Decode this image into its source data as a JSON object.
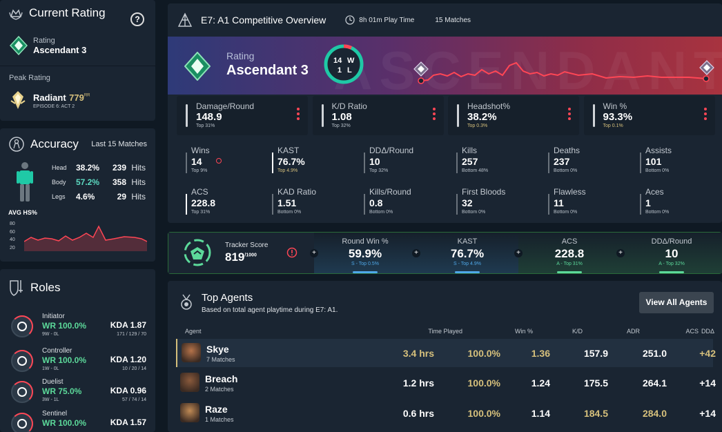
{
  "current_rating": {
    "title": "Current Rating",
    "help": "?",
    "rating_label": "Rating",
    "rating_value": "Ascendant 3",
    "peak_label": "Peak Rating",
    "peak_value": "Radiant",
    "peak_rr": "779",
    "peak_rr_unit": "RR",
    "peak_episode": "EPISODE 6: ACT 2"
  },
  "accuracy": {
    "title": "Accuracy",
    "subtitle": "Last 15 Matches",
    "rows": [
      {
        "part": "Head",
        "pct": "38.2%",
        "hits": "239",
        "hits_label": "Hits"
      },
      {
        "part": "Body",
        "pct": "57.2%",
        "hits": "358",
        "hits_label": "Hits"
      },
      {
        "part": "Legs",
        "pct": "4.6%",
        "hits": "29",
        "hits_label": "Hits"
      }
    ],
    "chart_label": "AVG HS%",
    "chart_ticks": [
      "80",
      "60",
      "40",
      "20"
    ]
  },
  "roles": {
    "title": "Roles",
    "items": [
      {
        "name": "Initiator",
        "wr": "WR 100.0%",
        "record": "9W - 0L",
        "kda": "KDA 1.87",
        "kda_detail": "171 / 129 / 70"
      },
      {
        "name": "Controller",
        "wr": "WR 100.0%",
        "record": "1W - 0L",
        "kda": "KDA 1.20",
        "kda_detail": "10 / 20 / 14"
      },
      {
        "name": "Duelist",
        "wr": "WR 75.0%",
        "record": "3W - 1L",
        "kda": "KDA 0.96",
        "kda_detail": "57 / 74 / 14"
      },
      {
        "name": "Sentinel",
        "wr": "WR 100.0%",
        "record": "",
        "kda": "KDA 1.57",
        "kda_detail": ""
      }
    ]
  },
  "overview": {
    "title": "E7: A1 Competitive Overview",
    "playtime": "8h 01m Play Time",
    "matches": "15 Matches",
    "watermark": "ASCENDANT",
    "rating_label": "Rating",
    "rating_value": "Ascendant 3",
    "wins": "14",
    "win_letter": "W",
    "losses": "1",
    "loss_letter": "L",
    "top_stats": [
      {
        "label": "Damage/Round",
        "value": "148.9",
        "rank": "Top 31%"
      },
      {
        "label": "K/D Ratio",
        "value": "1.08",
        "rank": "Top 32%"
      },
      {
        "label": "Headshot%",
        "value": "38.2%",
        "rank": "Top 0.3%"
      },
      {
        "label": "Win %",
        "value": "93.3%",
        "rank": "Top 0.1%"
      }
    ],
    "grid_stats": [
      {
        "label": "Wins",
        "value": "14",
        "rank": "Top 9%"
      },
      {
        "label": "KAST",
        "value": "76.7%",
        "rank": "Top 4.9%"
      },
      {
        "label": "DDΔ/Round",
        "value": "10",
        "rank": "Top 32%"
      },
      {
        "label": "Kills",
        "value": "257",
        "rank": "Bottom 48%"
      },
      {
        "label": "Deaths",
        "value": "237",
        "rank": "Bottom 0%"
      },
      {
        "label": "Assists",
        "value": "101",
        "rank": "Bottom 0%"
      },
      {
        "label": "ACS",
        "value": "228.8",
        "rank": "Top 31%"
      },
      {
        "label": "KAD Ratio",
        "value": "1.51",
        "rank": "Bottom 0%"
      },
      {
        "label": "Kills/Round",
        "value": "0.8",
        "rank": "Bottom 0%"
      },
      {
        "label": "First Bloods",
        "value": "32",
        "rank": "Bottom 0%"
      },
      {
        "label": "Flawless",
        "value": "11",
        "rank": "Bottom 0%"
      },
      {
        "label": "Aces",
        "value": "1",
        "rank": "Bottom 0%"
      }
    ]
  },
  "tracker": {
    "label": "Tracker Score",
    "score": "819",
    "max": "/1000",
    "cells": [
      {
        "label": "Round Win %",
        "value": "59.9%",
        "rank": "S - Top 0.5%"
      },
      {
        "label": "KAST",
        "value": "76.7%",
        "rank": "S - Top 4.9%"
      },
      {
        "label": "ACS",
        "value": "228.8",
        "rank": "A - Top 31%"
      },
      {
        "label": "DDΔ/Round",
        "value": "10",
        "rank": "A - Top 32%"
      }
    ]
  },
  "agents": {
    "title": "Top Agents",
    "subtitle": "Based on total agent playtime during E7: A1.",
    "view_all": "View All Agents",
    "headers": [
      "Agent",
      "Time Played",
      "Win %",
      "K/D",
      "ADR",
      "ACS",
      "DDΔ"
    ],
    "rows": [
      {
        "name": "Skye",
        "matches": "7 Matches",
        "time": "3.4 hrs",
        "win": "100.0%",
        "kd": "1.36",
        "adr": "157.9",
        "acs": "251.0",
        "dd": "+42"
      },
      {
        "name": "Breach",
        "matches": "2 Matches",
        "time": "1.2 hrs",
        "win": "100.0%",
        "kd": "1.24",
        "adr": "175.5",
        "acs": "264.1",
        "dd": "+14"
      },
      {
        "name": "Raze",
        "matches": "1 Matches",
        "time": "0.6 hrs",
        "win": "100.0%",
        "kd": "1.14",
        "adr": "184.5",
        "acs": "284.0",
        "dd": "+14"
      }
    ]
  },
  "colors": {
    "accent": "#ff4655",
    "green": "#5cd99a",
    "gold": "#d6c07c",
    "teal": "#1fc9a6"
  }
}
